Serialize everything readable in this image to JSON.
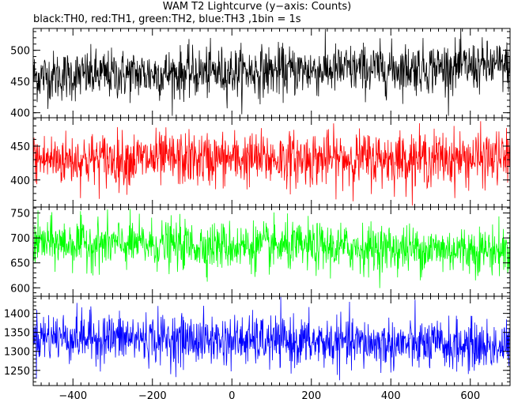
{
  "chart_data": {
    "type": "line",
    "title": "WAM T2 Lightcurve (y−axis: Counts)",
    "subtitle": "black:TH0, red:TH1, green:TH2, blue:TH3 ,1bin = 1s",
    "x_range": [
      -500,
      700
    ],
    "x_ticks": [
      -400,
      -200,
      0,
      200,
      400,
      600
    ],
    "x_tick_labels": [
      "−400",
      "−200",
      "0",
      "200",
      "400",
      "600"
    ],
    "grid": false,
    "panels": [
      {
        "series": "TH0",
        "color": "#000000",
        "y_range": [
          392,
          535
        ],
        "y_ticks": [
          400,
          450,
          500
        ],
        "trend_start": 458,
        "trend_end": 475,
        "noise_sd": 20,
        "clip": [
          395,
          535
        ]
      },
      {
        "series": "TH1",
        "color": "#ff0000",
        "y_range": [
          360,
          492
        ],
        "y_ticks": [
          400,
          450
        ],
        "trend_start": 430,
        "trend_end": 432,
        "noise_sd": 20,
        "clip": [
          362,
          492
        ]
      },
      {
        "series": "TH2",
        "color": "#00ff00",
        "y_range": [
          583,
          762
        ],
        "y_ticks": [
          600,
          650,
          700,
          750
        ],
        "trend_start": 690,
        "trend_end": 675,
        "noise_sd": 24,
        "clip": [
          587,
          762
        ]
      },
      {
        "series": "TH3",
        "color": "#0000ff",
        "y_range": [
          1210,
          1445
        ],
        "y_ticks": [
          1250,
          1300,
          1350,
          1400
        ],
        "trend_start": 1340,
        "trend_end": 1312,
        "noise_sd": 33,
        "clip": [
          1212,
          1445
        ]
      }
    ]
  }
}
